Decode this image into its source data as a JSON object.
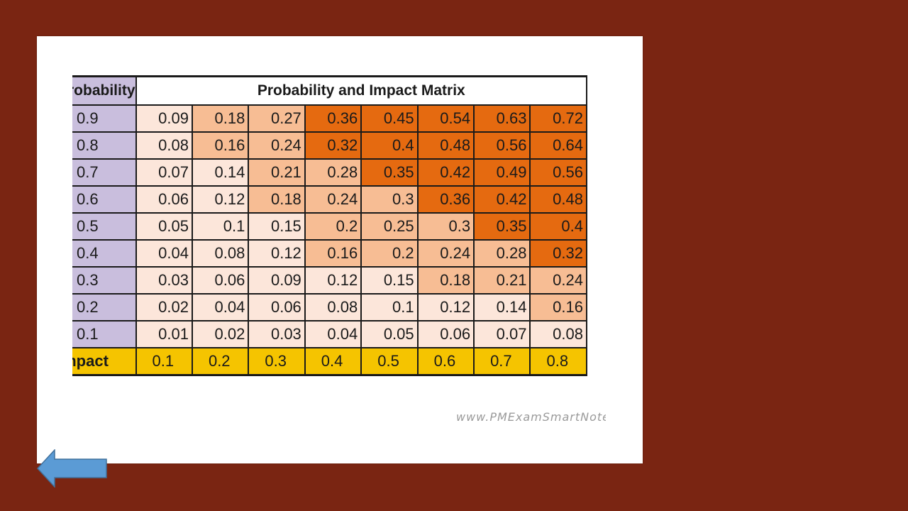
{
  "colors": {
    "background": "#7a2512",
    "probability_header": "#c9bedd",
    "impact_row": "#f5c400",
    "risk_low": "#fce6da",
    "risk_mid": "#f7bd94",
    "risk_high": "#e56a10"
  },
  "matrix": {
    "title": "Probability and Impact Matrix",
    "probability_label": "Probability",
    "impact_label": "Impact",
    "impact_values": [
      "0.1",
      "0.2",
      "0.3",
      "0.4",
      "0.5",
      "0.6",
      "0.7",
      "0.8"
    ],
    "rows": [
      {
        "probability": "0.9",
        "cells": [
          "0.09",
          "0.18",
          "0.27",
          "0.36",
          "0.45",
          "0.54",
          "0.63",
          "0.72"
        ],
        "levels": [
          "low",
          "mid",
          "mid",
          "high",
          "high",
          "high",
          "high",
          "high"
        ]
      },
      {
        "probability": "0.8",
        "cells": [
          "0.08",
          "0.16",
          "0.24",
          "0.32",
          "0.4",
          "0.48",
          "0.56",
          "0.64"
        ],
        "levels": [
          "low",
          "mid",
          "mid",
          "high",
          "high",
          "high",
          "high",
          "high"
        ]
      },
      {
        "probability": "0.7",
        "cells": [
          "0.07",
          "0.14",
          "0.21",
          "0.28",
          "0.35",
          "0.42",
          "0.49",
          "0.56"
        ],
        "levels": [
          "low",
          "low",
          "mid",
          "mid",
          "high",
          "high",
          "high",
          "high"
        ]
      },
      {
        "probability": "0.6",
        "cells": [
          "0.06",
          "0.12",
          "0.18",
          "0.24",
          "0.3",
          "0.36",
          "0.42",
          "0.48"
        ],
        "levels": [
          "low",
          "low",
          "mid",
          "mid",
          "mid",
          "high",
          "high",
          "high"
        ]
      },
      {
        "probability": "0.5",
        "cells": [
          "0.05",
          "0.1",
          "0.15",
          "0.2",
          "0.25",
          "0.3",
          "0.35",
          "0.4"
        ],
        "levels": [
          "low",
          "low",
          "low",
          "mid",
          "mid",
          "mid",
          "high",
          "high"
        ]
      },
      {
        "probability": "0.4",
        "cells": [
          "0.04",
          "0.08",
          "0.12",
          "0.16",
          "0.2",
          "0.24",
          "0.28",
          "0.32"
        ],
        "levels": [
          "low",
          "low",
          "low",
          "mid",
          "mid",
          "mid",
          "mid",
          "high"
        ]
      },
      {
        "probability": "0.3",
        "cells": [
          "0.03",
          "0.06",
          "0.09",
          "0.12",
          "0.15",
          "0.18",
          "0.21",
          "0.24"
        ],
        "levels": [
          "low",
          "low",
          "low",
          "low",
          "low",
          "mid",
          "mid",
          "mid"
        ]
      },
      {
        "probability": "0.2",
        "cells": [
          "0.02",
          "0.04",
          "0.06",
          "0.08",
          "0.1",
          "0.12",
          "0.14",
          "0.16"
        ],
        "levels": [
          "low",
          "low",
          "low",
          "low",
          "low",
          "low",
          "low",
          "mid"
        ]
      },
      {
        "probability": "0.1",
        "cells": [
          "0.01",
          "0.02",
          "0.03",
          "0.04",
          "0.05",
          "0.06",
          "0.07",
          "0.08"
        ],
        "levels": [
          "low",
          "low",
          "low",
          "low",
          "low",
          "low",
          "low",
          "low"
        ]
      }
    ]
  },
  "watermark": "www.PMExamSmartNotes.com",
  "navigation": {
    "back_icon": "left-arrow-icon"
  }
}
